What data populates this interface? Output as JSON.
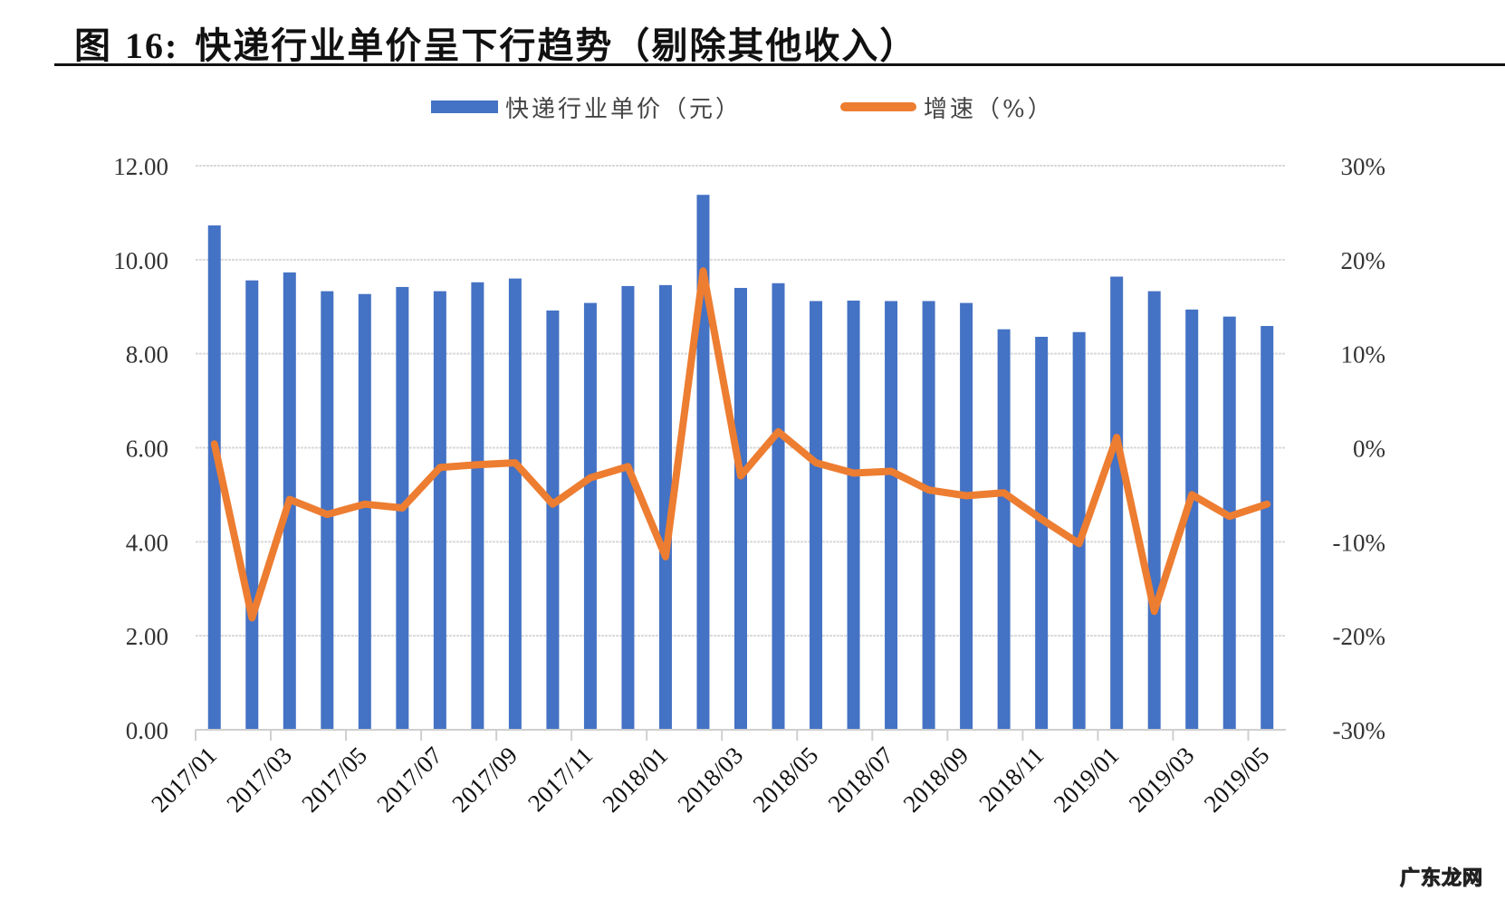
{
  "figure": {
    "label": "图",
    "number": "16:",
    "title": "快递行业单价呈下行趋势（剔除其他收入）"
  },
  "legend": {
    "bar_label": "快递行业单价（元）",
    "line_label": "增速（%）"
  },
  "colors": {
    "bar": "#4472C4",
    "line": "#ED7D31",
    "grid": "#D9D9D9",
    "axis_text": "#333333"
  },
  "watermark": "广东龙网",
  "chart_data": {
    "type": "bar+line",
    "title": "快递行业单价呈下行趋势（剔除其他收入）",
    "xlabel": "",
    "ylabel": "快递行业单价（元）",
    "y2label": "增速（%）",
    "ylim": [
      0,
      12
    ],
    "y2lim": [
      -30,
      30
    ],
    "yticks": [
      "0.00",
      "2.00",
      "4.00",
      "6.00",
      "8.00",
      "10.00",
      "12.00"
    ],
    "y2ticks": [
      "-30%",
      "-20%",
      "-10%",
      "0%",
      "10%",
      "20%",
      "30%"
    ],
    "xtick_labels": [
      "2017/01",
      "2017/03",
      "2017/05",
      "2017/07",
      "2017/09",
      "2017/11",
      "2018/01",
      "2018/03",
      "2018/05",
      "2018/07",
      "2018/09",
      "2018/11",
      "2019/01",
      "2019/03",
      "2019/05"
    ],
    "grid": true,
    "legend_position": "top",
    "categories": [
      "2017/01",
      "2017/02",
      "2017/03",
      "2017/04",
      "2017/05",
      "2017/06",
      "2017/07",
      "2017/08",
      "2017/09",
      "2017/10",
      "2017/11",
      "2017/12",
      "2018/01",
      "2018/02",
      "2018/03",
      "2018/04",
      "2018/05",
      "2018/06",
      "2018/07",
      "2018/08",
      "2018/09",
      "2018/10",
      "2018/11",
      "2018/12",
      "2019/01",
      "2019/02",
      "2019/03",
      "2019/04",
      "2019/05"
    ],
    "series": [
      {
        "name": "快递行业单价（元）",
        "type": "bar",
        "axis": "left",
        "values": [
          10.73,
          9.56,
          9.73,
          9.33,
          9.27,
          9.42,
          9.33,
          9.52,
          9.6,
          8.92,
          9.08,
          9.44,
          9.46,
          11.38,
          9.4,
          9.5,
          9.12,
          9.13,
          9.12,
          9.12,
          9.08,
          8.52,
          8.36,
          8.46,
          9.64,
          9.33,
          8.94,
          8.79,
          8.59
        ]
      },
      {
        "name": "增速（%）",
        "type": "line",
        "axis": "right",
        "values": [
          0.4,
          -18.1,
          -5.5,
          -7.1,
          -6.0,
          -6.4,
          -2.1,
          -1.8,
          -1.6,
          -6.0,
          -3.2,
          -2.0,
          -11.6,
          18.8,
          -3.0,
          1.7,
          -1.6,
          -2.7,
          -2.5,
          -4.5,
          -5.1,
          -4.8,
          -7.6,
          -10.2,
          1.1,
          -17.4,
          -5.0,
          -7.3,
          -6.0
        ]
      }
    ]
  }
}
